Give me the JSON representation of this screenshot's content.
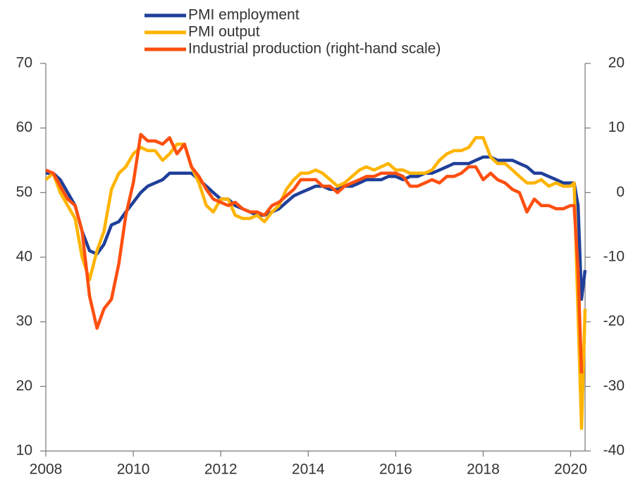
{
  "chart_data": {
    "type": "line",
    "x": [
      2008,
      2008.17,
      2008.33,
      2008.5,
      2008.67,
      2008.83,
      2009,
      2009.17,
      2009.33,
      2009.5,
      2009.67,
      2009.83,
      2010,
      2010.17,
      2010.33,
      2010.5,
      2010.67,
      2010.83,
      2011,
      2011.17,
      2011.33,
      2011.5,
      2011.67,
      2011.83,
      2012,
      2012.17,
      2012.33,
      2012.5,
      2012.67,
      2012.83,
      2013,
      2013.17,
      2013.33,
      2013.5,
      2013.67,
      2013.83,
      2014,
      2014.17,
      2014.33,
      2014.5,
      2014.67,
      2014.83,
      2015,
      2015.17,
      2015.33,
      2015.5,
      2015.67,
      2015.83,
      2016,
      2016.17,
      2016.33,
      2016.5,
      2016.67,
      2016.83,
      2017,
      2017.17,
      2017.33,
      2017.5,
      2017.67,
      2017.83,
      2018,
      2018.17,
      2018.33,
      2018.5,
      2018.67,
      2018.83,
      2019,
      2019.17,
      2019.33,
      2019.5,
      2019.67,
      2019.83,
      2020,
      2020.08,
      2020.17,
      2020.25,
      2020.33
    ],
    "series": [
      {
        "name": "PMI employment",
        "color": "#1f3f99",
        "axis": "y",
        "values": [
          53,
          53,
          52,
          50,
          48,
          44,
          41,
          40.5,
          42,
          45,
          45.5,
          47,
          48.5,
          50,
          51,
          51.5,
          52,
          53,
          53,
          53,
          53,
          52,
          51,
          50,
          49,
          49,
          48,
          47.5,
          47,
          46.5,
          46.5,
          47,
          47.5,
          48.5,
          49.5,
          50,
          50.5,
          51,
          51,
          50.5,
          50.5,
          51,
          51,
          51.5,
          52,
          52,
          52,
          52.5,
          52.5,
          52,
          52.5,
          52.5,
          53,
          53,
          53.5,
          54,
          54.5,
          54.5,
          54.5,
          55,
          55.5,
          55.5,
          55,
          55,
          55,
          54.5,
          54,
          53,
          53,
          52.5,
          52,
          51.5,
          51.5,
          51.5,
          48,
          33.5,
          38
        ]
      },
      {
        "name": "PMI output",
        "color": "#ffb400",
        "axis": "y",
        "values": [
          52,
          53,
          50,
          48,
          46,
          40,
          36.5,
          41,
          44,
          50.5,
          53,
          54,
          56,
          57,
          56.5,
          56.5,
          55,
          56,
          57.5,
          57.5,
          54,
          51.5,
          48,
          47,
          49,
          49,
          46.5,
          46,
          46,
          46.5,
          45.5,
          47,
          48,
          50.5,
          52,
          53,
          53,
          53.5,
          53,
          52,
          51,
          51.5,
          52.5,
          53.5,
          54,
          53.5,
          54,
          54.5,
          53.5,
          53.5,
          53,
          53,
          53,
          53.5,
          55,
          56,
          56.5,
          56.5,
          57,
          58.5,
          58.5,
          55.5,
          54.5,
          54.5,
          53.5,
          52.5,
          51.5,
          51.5,
          52,
          51,
          51.5,
          51,
          51,
          51.5,
          31,
          13.5,
          32
        ]
      },
      {
        "name": "Industrial production (right-hand scale)",
        "color": "#ff4f0f",
        "axis": "y2",
        "values": [
          3.5,
          3,
          1,
          -1,
          -2,
          -6,
          -16,
          -21,
          -18,
          -16.5,
          -11,
          -3.5,
          1.5,
          9,
          8,
          8,
          7.5,
          8.5,
          6,
          7.5,
          4,
          2.5,
          0.5,
          -1,
          -1.5,
          -2,
          -1.5,
          -2.5,
          -3,
          -3,
          -3.5,
          -2,
          -1.5,
          -0.5,
          0.5,
          2,
          2,
          2,
          1,
          1,
          0,
          1,
          1.5,
          2,
          2.5,
          2.5,
          3,
          3,
          3,
          2.5,
          1,
          1,
          1.5,
          2,
          1.5,
          2.5,
          2.5,
          3,
          4,
          4,
          2,
          3,
          2,
          1.5,
          0.5,
          0,
          -3,
          -1,
          -2,
          -2,
          -2.5,
          -2.5,
          -2,
          -2,
          -12,
          -28,
          null
        ]
      }
    ],
    "xlim": [
      2008,
      2020.33
    ],
    "xticks": [
      2008,
      2010,
      2012,
      2014,
      2016,
      2018,
      2020
    ],
    "ylim": [
      10,
      70
    ],
    "yticks": [
      10,
      20,
      30,
      40,
      50,
      60,
      70
    ],
    "y2lim": [
      -40,
      20
    ],
    "y2ticks": [
      -40,
      -30,
      -20,
      -10,
      0,
      10,
      20
    ],
    "grid": false
  }
}
